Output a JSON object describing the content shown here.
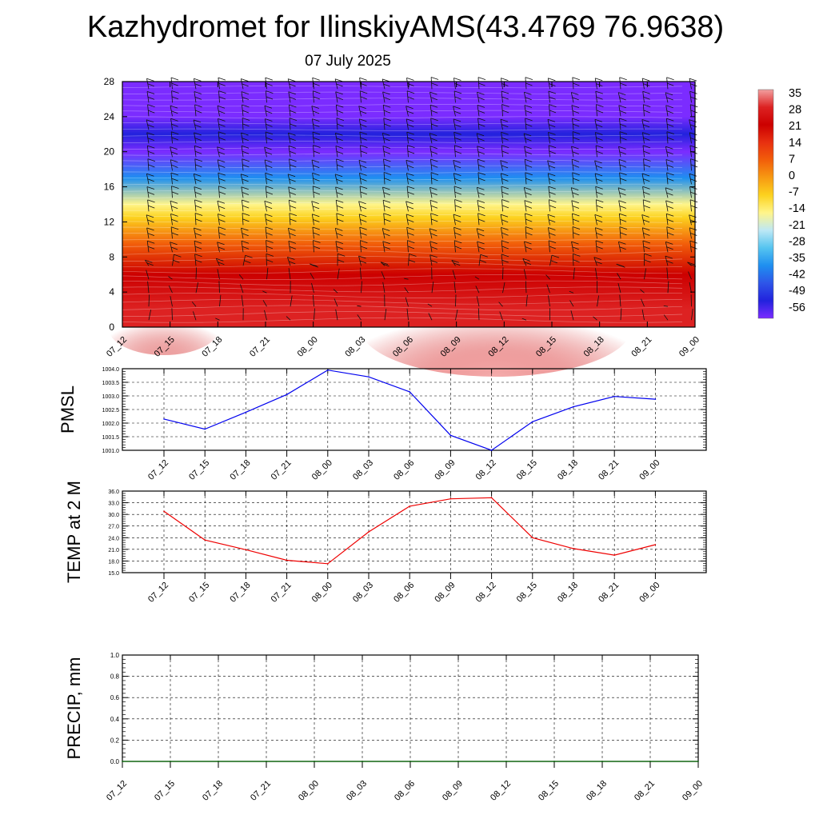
{
  "title": "Kazhydromet for IlinskiyAMS(43.4769 76.9638)",
  "subtitle": "07 July 2025",
  "chart_data": [
    {
      "type": "heatmap",
      "name": "temperature-height cross section with wind barbs",
      "x_tick_labels": [
        "07_12",
        "07_15",
        "07_18",
        "07_21",
        "08_00",
        "08_03",
        "08_06",
        "08_09",
        "08_12",
        "08_15",
        "08_18",
        "08_21",
        "09_00"
      ],
      "y_tick_labels": [
        "0",
        "4",
        "8",
        "12",
        "16",
        "20",
        "24",
        "28"
      ],
      "ylim": [
        0,
        28
      ],
      "colorbar_labels": [
        "35",
        "28",
        "21",
        "14",
        "7",
        "0",
        "-7",
        "-14",
        "-21",
        "-28",
        "-35",
        "-42",
        "-49",
        "-56"
      ],
      "colorbar_colors": [
        "#f2a0a0",
        "#dd2222",
        "#cc0000",
        "#e83010",
        "#f25e0a",
        "#f79a12",
        "#fcd21e",
        "#fff58a",
        "#bde8f5",
        "#55c4f0",
        "#1e8ff0",
        "#2e55e8",
        "#2222dd",
        "#7b2cff"
      ],
      "temperature_profile": [
        {
          "height": 0,
          "value": 30
        },
        {
          "height": 2,
          "value": 28
        },
        {
          "height": 6,
          "value": 18
        },
        {
          "height": 9.5,
          "value": 6
        },
        {
          "height": 12.5,
          "value": -9
        },
        {
          "height": 14,
          "value": -15
        },
        {
          "height": 17,
          "value": -32
        },
        {
          "height": 20,
          "value": -56
        },
        {
          "height": 22,
          "value": -52
        },
        {
          "height": 24,
          "value": -58
        },
        {
          "height": 28,
          "value": -58
        }
      ]
    },
    {
      "type": "line",
      "ylabel": "PMSL",
      "ylim": [
        1001.0,
        1004.0
      ],
      "y_tick_labels": [
        "1001.0",
        "1001.5",
        "1002.0",
        "1002.5",
        "1003.0",
        "1003.5",
        "1004.0"
      ],
      "categories": [
        "07_12",
        "07_15",
        "07_18",
        "07_21",
        "08_00",
        "08_03",
        "08_06",
        "08_09",
        "08_12",
        "08_15",
        "08_18",
        "08_21",
        "09_00"
      ],
      "values": [
        1002.15,
        1001.78,
        1002.4,
        1003.05,
        1003.95,
        1003.7,
        1003.15,
        1001.55,
        1001.0,
        1002.05,
        1002.6,
        1002.98,
        1002.88
      ],
      "color": "#0000ee",
      "grid": true
    },
    {
      "type": "line",
      "ylabel": "TEMP at 2 M",
      "ylim": [
        15.0,
        36.0
      ],
      "y_tick_labels": [
        "15.0",
        "18.0",
        "21.0",
        "24.0",
        "27.0",
        "30.0",
        "33.0",
        "36.0"
      ],
      "categories": [
        "07_12",
        "07_15",
        "07_18",
        "07_21",
        "08_00",
        "08_03",
        "08_06",
        "08_09",
        "08_12",
        "08_15",
        "08_18",
        "08_21",
        "09_00"
      ],
      "values": [
        30.8,
        23.4,
        20.9,
        18.2,
        17.3,
        25.5,
        32.1,
        34.0,
        34.3,
        24.0,
        21.2,
        19.5,
        22.2
      ],
      "color": "#ee0000",
      "grid": true
    },
    {
      "type": "line",
      "ylabel": "PRECIP, mm",
      "ylim": [
        0.0,
        1.0
      ],
      "y_tick_labels": [
        "0.0",
        "0.2",
        "0.4",
        "0.6",
        "0.8",
        "1.0"
      ],
      "x_tick_labels": [
        "07_12",
        "07_15",
        "07_18",
        "07_21",
        "08_00",
        "08_03",
        "08_06",
        "08_09",
        "08_12",
        "08_15",
        "08_18",
        "08_21",
        "09_00"
      ],
      "values": [
        0,
        0,
        0,
        0,
        0,
        0,
        0,
        0,
        0,
        0,
        0,
        0,
        0
      ],
      "color": "#006400",
      "grid": true
    }
  ]
}
